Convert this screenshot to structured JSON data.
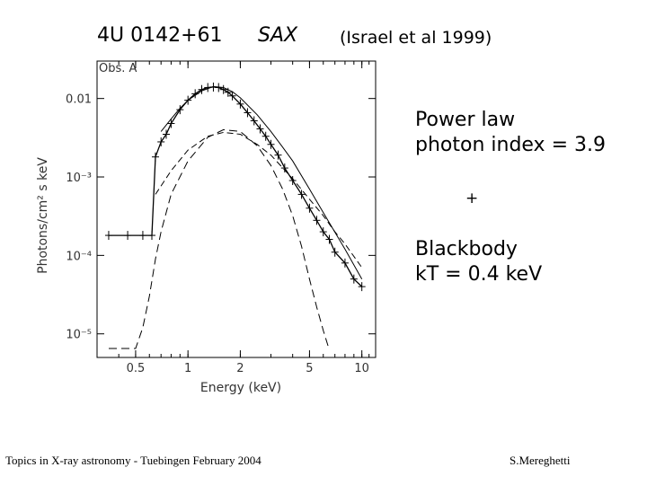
{
  "header": {
    "title": "4U 0142+61",
    "instrument": "SAX",
    "reference": "(Israel et al 1999)"
  },
  "annotations": {
    "power_law_line1": "Power law",
    "power_law_line2": "photon index = 3.9",
    "plus": "+",
    "blackbody_line1": "Blackbody",
    "blackbody_line2": "kT = 0.4 keV"
  },
  "footer": {
    "left": "Topics in X-ray astronomy  -  Tuebingen  February 2004",
    "right": "S.Mereghetti"
  },
  "chart_data": {
    "type": "line",
    "title": "Obs. A",
    "xlabel": "Energy (keV)",
    "ylabel": "Photons/cm² s keV",
    "xscale": "log",
    "yscale": "log",
    "xlim": [
      0.3,
      12
    ],
    "ylim": [
      5e-06,
      0.03
    ],
    "x_ticks": [
      0.5,
      1,
      2,
      5,
      10
    ],
    "x_tick_labels": [
      "0.5",
      "1",
      "2",
      "5",
      "10"
    ],
    "y_ticks": [
      1e-05,
      0.0001,
      0.001,
      0.01
    ],
    "y_tick_labels": [
      "10⁻⁵",
      "10⁻⁴",
      "10⁻³",
      "0.01"
    ],
    "series": [
      {
        "style": "data",
        "x": [
          0.35,
          0.45,
          0.55,
          0.62,
          0.65,
          0.7,
          0.75,
          0.8,
          0.9,
          1.0,
          1.1,
          1.2,
          1.3,
          1.4,
          1.5,
          1.6,
          1.7,
          1.8,
          2.0,
          2.2,
          2.4,
          2.6,
          2.8,
          3.0,
          3.3,
          3.6,
          4.0,
          4.5,
          5.0,
          5.5,
          6.0,
          6.5,
          7.0,
          8.0,
          9.0,
          10.0
        ],
        "y": [
          0.00018,
          0.00018,
          0.00018,
          0.00018,
          0.0018,
          0.0028,
          0.0035,
          0.0048,
          0.0072,
          0.0095,
          0.0115,
          0.013,
          0.0138,
          0.014,
          0.0138,
          0.013,
          0.012,
          0.0108,
          0.0085,
          0.0066,
          0.0052,
          0.0041,
          0.0033,
          0.0026,
          0.0019,
          0.0013,
          0.0009,
          0.0006,
          0.0004,
          0.00028,
          0.0002,
          0.00016,
          0.00011,
          8e-05,
          5e-05,
          4e-05
        ]
      },
      {
        "style": "model-total",
        "x": [
          0.7,
          0.8,
          0.9,
          1.0,
          1.2,
          1.4,
          1.6,
          1.8,
          2.0,
          2.5,
          3.0,
          3.5,
          4.0,
          5.0,
          6.0,
          8.0,
          10.0
        ],
        "y": [
          0.0038,
          0.0055,
          0.0075,
          0.0095,
          0.0125,
          0.0142,
          0.0138,
          0.0122,
          0.0102,
          0.0062,
          0.0038,
          0.0024,
          0.0016,
          0.0007,
          0.00035,
          0.00012,
          5e-05
        ]
      },
      {
        "style": "power-law",
        "x": [
          0.65,
          0.8,
          1.0,
          1.3,
          1.6,
          2.0,
          2.5,
          3.0,
          4.0,
          5.0,
          6.0,
          7.0,
          8.0,
          10.0
        ],
        "y": [
          0.0006,
          0.0012,
          0.0022,
          0.0033,
          0.0037,
          0.0035,
          0.0026,
          0.0019,
          0.00095,
          0.00052,
          0.00032,
          0.0002,
          0.00014,
          7e-05
        ]
      },
      {
        "style": "blackbody",
        "x": [
          0.35,
          0.5,
          0.55,
          0.6,
          0.65,
          0.7,
          0.8,
          1.0,
          1.3,
          1.6,
          2.0,
          2.5,
          3.0,
          3.5,
          4.0,
          4.5,
          5.0,
          5.5,
          6.0,
          6.5
        ],
        "y": [
          6.5e-06,
          6.5e-06,
          1.2e-05,
          3e-05,
          9e-05,
          0.0002,
          0.0006,
          0.0016,
          0.0032,
          0.004,
          0.0038,
          0.0025,
          0.0014,
          0.0007,
          0.00032,
          0.00013,
          5e-05,
          2.2e-05,
          1.1e-05,
          6.2e-06
        ]
      }
    ],
    "grid": false,
    "legend": "none"
  }
}
